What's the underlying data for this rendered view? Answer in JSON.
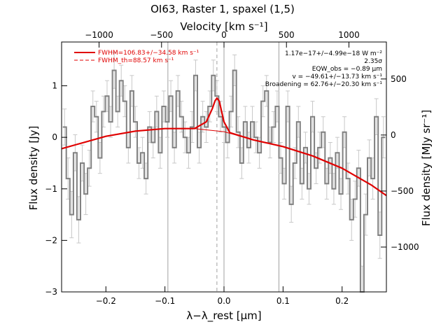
{
  "chart_data": {
    "type": "line",
    "title": "OI63, Raster 1, spaxel (1,5)",
    "xlabel": "λ−λ_rest [μm]",
    "ylabel": "Flux density [Jy]",
    "top_axis_label": "Velocity [km s⁻¹]",
    "right_axis_label": "Flux density [MJy sr⁻¹]",
    "xlim": [
      -0.275,
      0.275
    ],
    "ylim": [
      -3.0,
      1.85
    ],
    "top_xlim": [
      -1300,
      1300
    ],
    "right_ylim": [
      -1400,
      830
    ],
    "x_ticks": [
      -0.2,
      -0.1,
      0.0,
      0.1,
      0.2
    ],
    "x_tick_labels": [
      "−0.2",
      "−0.1",
      "0.0",
      "0.1",
      "0.2"
    ],
    "y_ticks": [
      -3,
      -2,
      -1,
      0,
      1
    ],
    "y_tick_labels": [
      "−3",
      "−2",
      "−1",
      "0",
      "1"
    ],
    "top_ticks": [
      -1000,
      -500,
      0,
      500,
      1000
    ],
    "top_tick_labels": [
      "−1000",
      "−500",
      "0",
      "500",
      "1000"
    ],
    "right_ticks": [
      -1000,
      -500,
      0,
      500
    ],
    "right_tick_labels": [
      "−1000",
      "−500",
      "0",
      "500"
    ],
    "vertical_lines": [
      -0.095,
      0.0,
      0.093
    ],
    "rest_marker_x": -0.012,
    "legend": {
      "position": "top-left",
      "entries": [
        {
          "label": "FWHM=106.83+/−34.58 km s⁻¹",
          "style": "solid"
        },
        {
          "label": "FWHM_th=88.57 km s⁻¹",
          "style": "dashed"
        }
      ]
    },
    "annotations": [
      "1.17e−17+/−4.99e−18 W m⁻²",
      "2.35σ",
      "EQW_obs = −0.89 μm",
      "v = −49.61+/−13.73 km s⁻¹",
      "Broadening = 62.76+/−20.30 km s⁻¹"
    ],
    "series": [
      {
        "type": "step",
        "color": "#808080",
        "x": [
          -0.27,
          -0.264,
          -0.258,
          -0.252,
          -0.246,
          -0.24,
          -0.234,
          -0.228,
          -0.222,
          -0.216,
          -0.21,
          -0.204,
          -0.198,
          -0.192,
          -0.186,
          -0.18,
          -0.174,
          -0.168,
          -0.162,
          -0.156,
          -0.15,
          -0.144,
          -0.138,
          -0.132,
          -0.126,
          -0.12,
          -0.114,
          -0.108,
          -0.102,
          -0.096,
          -0.09,
          -0.084,
          -0.078,
          -0.072,
          -0.066,
          -0.06,
          -0.054,
          -0.048,
          -0.042,
          -0.036,
          -0.03,
          -0.024,
          -0.018,
          -0.012,
          -0.006,
          0.0,
          0.006,
          0.012,
          0.018,
          0.024,
          0.03,
          0.036,
          0.042,
          0.048,
          0.054,
          0.06,
          0.066,
          0.072,
          0.078,
          0.084,
          0.09,
          0.096,
          0.102,
          0.108,
          0.114,
          0.12,
          0.126,
          0.132,
          0.138,
          0.144,
          0.15,
          0.156,
          0.162,
          0.168,
          0.174,
          0.18,
          0.186,
          0.192,
          0.198,
          0.204,
          0.21,
          0.216,
          0.222,
          0.228,
          0.234,
          0.24,
          0.246,
          0.252,
          0.258,
          0.264,
          0.27
        ],
        "y": [
          0.2,
          -0.8,
          -1.5,
          -0.3,
          -1.6,
          -0.5,
          -1.1,
          -0.6,
          0.6,
          0.4,
          -0.4,
          0.5,
          0.8,
          0.3,
          1.3,
          0.5,
          1.1,
          0.7,
          -0.2,
          0.9,
          0.3,
          -0.5,
          -0.3,
          -0.8,
          0.2,
          -0.1,
          0.5,
          -0.3,
          0.6,
          0.3,
          0.8,
          -0.2,
          0.9,
          0.4,
          0.0,
          -0.3,
          0.2,
          1.2,
          -0.2,
          0.4,
          0.2,
          0.6,
          1.2,
          0.8,
          0.4,
          0.2,
          -0.1,
          0.5,
          1.3,
          0.1,
          -0.5,
          0.3,
          -0.2,
          0.3,
          0.0,
          -0.3,
          0.7,
          0.9,
          -0.1,
          0.2,
          0.6,
          -0.4,
          -0.9,
          0.6,
          -1.3,
          -0.5,
          0.3,
          -0.9,
          -0.2,
          -1.0,
          0.4,
          -0.6,
          -0.2,
          0.1,
          -0.9,
          -0.4,
          -1.0,
          -0.3,
          -1.1,
          0.1,
          -0.8,
          -1.6,
          -1.2,
          -0.6,
          -3.0,
          -1.5,
          -0.4,
          -0.8,
          0.4,
          -1.9,
          0.0
        ],
        "error": [
          0.35,
          0.4,
          0.45,
          0.35,
          0.45,
          0.35,
          0.4,
          0.35,
          0.3,
          0.3,
          0.3,
          0.3,
          0.3,
          0.3,
          0.35,
          0.3,
          0.3,
          0.3,
          0.3,
          0.3,
          0.3,
          0.3,
          0.3,
          0.3,
          0.3,
          0.3,
          0.3,
          0.3,
          0.3,
          0.3,
          0.3,
          0.3,
          0.3,
          0.3,
          0.3,
          0.3,
          0.3,
          0.3,
          0.3,
          0.3,
          0.3,
          0.3,
          0.3,
          0.3,
          0.3,
          0.3,
          0.3,
          0.3,
          0.3,
          0.3,
          0.3,
          0.3,
          0.3,
          0.3,
          0.3,
          0.3,
          0.3,
          0.3,
          0.3,
          0.3,
          0.3,
          0.3,
          0.3,
          0.3,
          0.35,
          0.3,
          0.3,
          0.3,
          0.3,
          0.3,
          0.3,
          0.3,
          0.3,
          0.3,
          0.3,
          0.3,
          0.3,
          0.3,
          0.3,
          0.3,
          0.3,
          0.4,
          0.35,
          0.35,
          0.5,
          0.4,
          0.35,
          0.4,
          0.35,
          0.45,
          0.4
        ]
      },
      {
        "type": "line",
        "color": "#e00000",
        "x": [
          -0.275,
          -0.25,
          -0.2,
          -0.15,
          -0.1,
          -0.05,
          -0.03,
          -0.02,
          -0.015,
          -0.012,
          -0.008,
          -0.004,
          0.0,
          0.01,
          0.05,
          0.1,
          0.15,
          0.2,
          0.25,
          0.275
        ],
        "y": [
          -0.22,
          -0.14,
          0.02,
          0.12,
          0.17,
          0.17,
          0.3,
          0.55,
          0.71,
          0.76,
          0.7,
          0.5,
          0.3,
          0.09,
          -0.05,
          -0.18,
          -0.36,
          -0.6,
          -0.93,
          -1.13
        ]
      },
      {
        "type": "line",
        "color": "#e00000",
        "width": "thin",
        "x": [
          -0.275,
          -0.25,
          -0.2,
          -0.15,
          -0.1,
          -0.05,
          0.0,
          0.05,
          0.1,
          0.15,
          0.2,
          0.25,
          0.275
        ],
        "y": [
          -0.22,
          -0.14,
          0.02,
          0.12,
          0.17,
          0.17,
          0.11,
          -0.05,
          -0.18,
          -0.36,
          -0.6,
          -0.93,
          -1.13
        ]
      }
    ]
  }
}
